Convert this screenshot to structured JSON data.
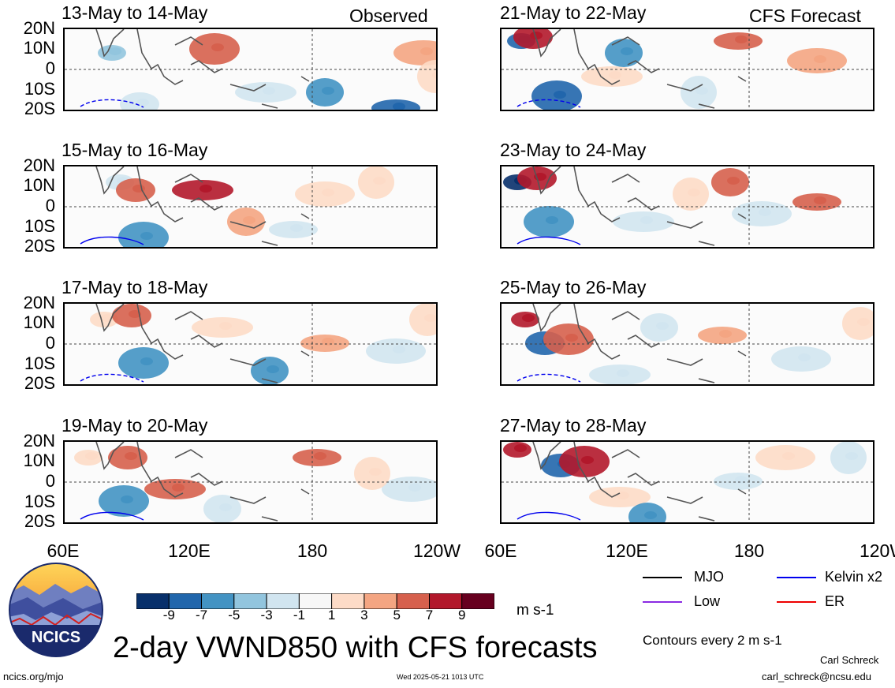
{
  "panels_left": [
    {
      "title": "13-May to 14-May",
      "tag": "Observed"
    },
    {
      "title": "15-May to 16-May",
      "tag": ""
    },
    {
      "title": "17-May to 18-May",
      "tag": ""
    },
    {
      "title": "19-May to 20-May",
      "tag": ""
    }
  ],
  "panels_right": [
    {
      "title": "21-May to 22-May",
      "tag": "CFS Forecast"
    },
    {
      "title": "23-May to 24-May",
      "tag": ""
    },
    {
      "title": "25-May to 26-May",
      "tag": ""
    },
    {
      "title": "27-May to 28-May",
      "tag": ""
    }
  ],
  "lat_labels": [
    "20N",
    "10N",
    "0",
    "10S",
    "20S"
  ],
  "lon_labels": [
    "60E",
    "120E",
    "180",
    "120W"
  ],
  "colorbar": {
    "labels": [
      "-9",
      "-7",
      "-5",
      "-3",
      "-1",
      "1",
      "3",
      "5",
      "7",
      "9"
    ],
    "colors": [
      "#08306b",
      "#2166ac",
      "#4393c3",
      "#92c5de",
      "#d1e5f0",
      "#f7f7f7",
      "#fddbc7",
      "#f4a582",
      "#d6604d",
      "#b2182b",
      "#67001f"
    ],
    "units": "m s-1"
  },
  "legend": {
    "mjo": "MJO",
    "kelvin": "Kelvin x2",
    "low": "Low",
    "er": "ER",
    "colors": {
      "mjo": "#000000",
      "kelvin": "#0000ee",
      "low": "#8a2be2",
      "er": "#ee0000"
    }
  },
  "contours_note": "Contours every 2 m s-1",
  "main_title": "2-day VWND850 with CFS forecasts",
  "logo_text": "NCICS",
  "footer": {
    "url": "ncics.org/mjo",
    "timestamp": "Wed 2025-05-21 1013 UTC",
    "author": "Carl Schreck",
    "email": "carl_schreck@ncsu.edu"
  }
}
